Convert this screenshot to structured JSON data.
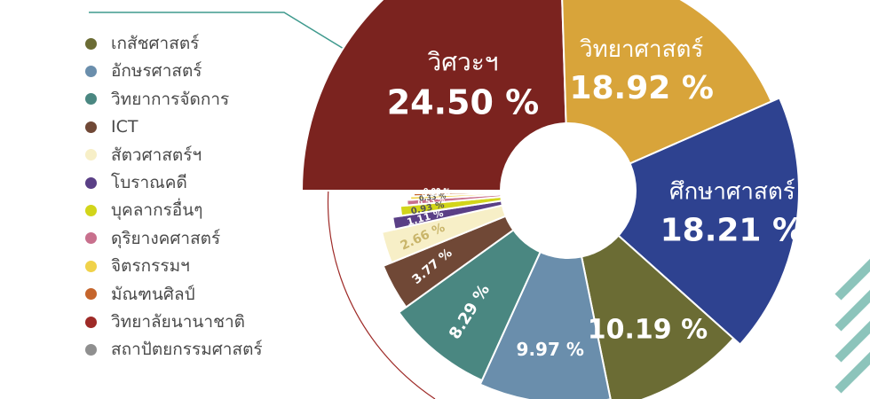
{
  "chart_data": {
    "type": "pie",
    "categories": [
      "วิศวะฯ",
      "วิทยาศาสตร์",
      "ศึกษาศาสตร์",
      "เกสัชศาสตร์",
      "อักษรศาสตร์",
      "วิทยาการจัดการ",
      "ICT",
      "สัตวศาสตร์ฯ",
      "โบราณคดี",
      "บุคลากรอื่นๆ",
      "ดุริยางคศาสตร์",
      "จิตรกรรมฯ",
      "มัณฑนศิลป์",
      "วิทยาลัยนานาชาติ",
      "สถาปัตยกรรมศาสตร์"
    ],
    "values": [
      24.5,
      18.92,
      18.21,
      10.19,
      9.97,
      8.29,
      3.77,
      2.66,
      1.11,
      0.93,
      0.53,
      0.35,
      0.31,
      0.18,
      0.09
    ],
    "value_labels": [
      "24.50 %",
      "18.92 %",
      "18.21 %",
      "10.19 %",
      "9.97 %",
      "8.29 %",
      "3.77 %",
      "2.66 %",
      "1.11 %",
      "0.93 %",
      "0.53 %",
      "0.35 %",
      "0.31 %",
      "0.18 %",
      "0.09 %"
    ],
    "colors": [
      "#7b231f",
      "#d8a43a",
      "#2e4290",
      "#6b6c34",
      "#6a8eac",
      "#4a8781",
      "#704836",
      "#f7efc7",
      "#5a3f86",
      "#d2d51a",
      "#c8708d",
      "#f0d24a",
      "#c5652c",
      "#9e2a27",
      "#8f8f8f"
    ],
    "legend_placement": "left",
    "legend": [
      {
        "label": "เกสัชศาสตร์",
        "color": "#6b6c34"
      },
      {
        "label": "อักษรศาสตร์",
        "color": "#6a8eac"
      },
      {
        "label": "วิทยาการจัดการ",
        "color": "#4a8781"
      },
      {
        "label": "ICT",
        "color": "#704836"
      },
      {
        "label": "สัตวศาสตร์ฯ",
        "color": "#f7efc7"
      },
      {
        "label": "โบราณคดี",
        "color": "#5a3f86"
      },
      {
        "label": "บุคลากรอื่นๆ",
        "color": "#d2d51a"
      },
      {
        "label": "ดุริยางคศาสตร์",
        "color": "#c8708d"
      },
      {
        "label": "จิตรกรรมฯ",
        "color": "#f0d24a"
      },
      {
        "label": "มัณฑนศิลป์",
        "color": "#c5652c"
      },
      {
        "label": "วิทยาลัยนานาชาติ",
        "color": "#9e2a27"
      },
      {
        "label": "สถาปัตยกรรมศาสตร์",
        "color": "#8f8f8f"
      }
    ]
  }
}
